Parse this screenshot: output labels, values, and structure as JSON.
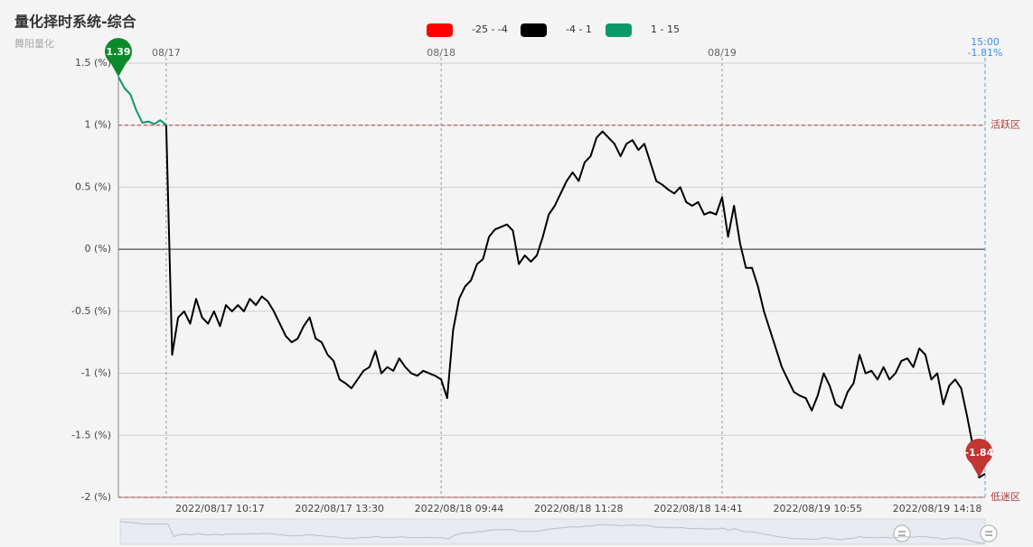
{
  "chart_data": {
    "type": "line",
    "title": "量化择时系统-综合",
    "subtitle": "舞阳量化",
    "pieces": [
      {
        "label": "-25 - -4",
        "min": -25,
        "max": -4,
        "color": "#ff0000"
      },
      {
        "label": "-4 - 1",
        "min": -4,
        "max": 1,
        "color": "#000000"
      },
      {
        "label": "1 - 15",
        "min": 1,
        "max": 15,
        "color": "#0a9a6a"
      }
    ],
    "values": [
      1.39,
      1.3,
      1.25,
      1.12,
      1.02,
      1.03,
      1.01,
      1.04,
      1.0,
      -0.85,
      -0.55,
      -0.5,
      -0.6,
      -0.4,
      -0.55,
      -0.6,
      -0.5,
      -0.62,
      -0.45,
      -0.5,
      -0.45,
      -0.5,
      -0.4,
      -0.45,
      -0.38,
      -0.42,
      -0.5,
      -0.6,
      -0.7,
      -0.75,
      -0.72,
      -0.62,
      -0.55,
      -0.72,
      -0.75,
      -0.85,
      -0.9,
      -1.05,
      -1.08,
      -1.12,
      -1.05,
      -0.98,
      -0.95,
      -0.82,
      -1.0,
      -0.95,
      -0.98,
      -0.88,
      -0.95,
      -1.0,
      -1.02,
      -0.98,
      -1.0,
      -1.02,
      -1.05,
      -1.2,
      -0.65,
      -0.4,
      -0.3,
      -0.25,
      -0.12,
      -0.08,
      0.1,
      0.16,
      0.18,
      0.2,
      0.15,
      -0.12,
      -0.05,
      -0.1,
      -0.05,
      0.1,
      0.28,
      0.35,
      0.45,
      0.55,
      0.62,
      0.55,
      0.7,
      0.75,
      0.9,
      0.95,
      0.9,
      0.85,
      0.75,
      0.85,
      0.88,
      0.8,
      0.85,
      0.7,
      0.55,
      0.52,
      0.48,
      0.45,
      0.5,
      0.38,
      0.35,
      0.38,
      0.28,
      0.3,
      0.28,
      0.42,
      0.1,
      0.35,
      0.05,
      -0.15,
      -0.15,
      -0.3,
      -0.5,
      -0.65,
      -0.8,
      -0.95,
      -1.05,
      -1.15,
      -1.18,
      -1.2,
      -1.3,
      -1.18,
      -1.0,
      -1.1,
      -1.25,
      -1.28,
      -1.15,
      -1.08,
      -0.85,
      -1.0,
      -0.98,
      -1.05,
      -0.95,
      -1.05,
      -1.0,
      -0.9,
      -0.88,
      -0.95,
      -0.8,
      -0.85,
      -1.05,
      -1.0,
      -1.25,
      -1.1,
      -1.05,
      -1.12,
      -1.35,
      -1.6,
      -1.84,
      -1.81
    ],
    "categories": [
      null,
      null,
      null,
      null,
      null,
      null,
      null,
      null,
      null,
      null,
      null,
      null,
      null,
      null,
      null,
      null,
      null,
      "2022/08/17 10:17",
      null,
      null,
      null,
      null,
      null,
      null,
      null,
      null,
      null,
      null,
      null,
      null,
      null,
      null,
      null,
      null,
      null,
      null,
      null,
      "2022/08/17 13:30",
      null,
      null,
      null,
      null,
      null,
      null,
      null,
      null,
      null,
      null,
      null,
      null,
      null,
      null,
      null,
      null,
      null,
      null,
      null,
      "2022/08/18 09:44",
      null,
      null,
      null,
      null,
      null,
      null,
      null,
      null,
      null,
      null,
      null,
      null,
      null,
      null,
      null,
      null,
      null,
      null,
      null,
      "2022/08/18 11:28",
      null,
      null,
      null,
      null,
      null,
      null,
      null,
      null,
      null,
      null,
      null,
      null,
      null,
      null,
      null,
      null,
      null,
      null,
      null,
      "2022/08/18 14:41",
      null,
      null,
      null,
      null,
      null,
      null,
      null,
      null,
      null,
      null,
      null,
      null,
      null,
      null,
      null,
      null,
      null,
      null,
      null,
      "2022/08/19 10:55",
      null,
      null,
      null,
      null,
      null,
      null,
      null,
      null,
      null,
      null,
      null,
      null,
      null,
      null,
      null,
      null,
      null,
      null,
      null,
      "2022/08/19 14:18",
      null,
      null,
      null,
      null,
      null,
      null,
      null,
      null
    ],
    "day_labels": [
      null,
      null,
      null,
      null,
      null,
      null,
      null,
      null,
      "08/17",
      null,
      null,
      null,
      null,
      null,
      null,
      null,
      null,
      null,
      null,
      null,
      null,
      null,
      null,
      null,
      null,
      null,
      null,
      null,
      null,
      null,
      null,
      null,
      null,
      null,
      null,
      null,
      null,
      null,
      null,
      null,
      null,
      null,
      null,
      null,
      null,
      null,
      null,
      null,
      null,
      null,
      null,
      null,
      null,
      null,
      "08/18",
      null,
      null,
      null,
      null,
      null,
      null,
      null,
      null,
      null,
      null,
      null,
      null,
      null,
      null,
      null,
      null,
      null,
      null,
      null,
      null,
      null,
      null,
      null,
      null,
      null,
      null,
      null,
      null,
      null,
      null,
      null,
      null,
      null,
      null,
      null,
      null,
      null,
      null,
      null,
      null,
      null,
      null,
      null,
      null,
      null,
      null,
      "08/19",
      null,
      null,
      null,
      null,
      null,
      null,
      null,
      null,
      null,
      null,
      null,
      null,
      null,
      null,
      null,
      null,
      null,
      null,
      null,
      null,
      null,
      null,
      null,
      null,
      null,
      null,
      null,
      null,
      null,
      null,
      null,
      null,
      null,
      null,
      null,
      null,
      null,
      null,
      null,
      null,
      null,
      null,
      null,
      null
    ],
    "ylim": [
      -2,
      1.5
    ],
    "yticks": [
      {
        "value": 1.5,
        "label": "1.5 (%)"
      },
      {
        "value": 1,
        "label": "1 (%)"
      },
      {
        "value": 0.5,
        "label": "0.5 (%)"
      },
      {
        "value": 0,
        "label": "0 (%)"
      },
      {
        "value": -0.5,
        "label": "-0.5 (%)"
      },
      {
        "value": -1,
        "label": "-1 (%)"
      },
      {
        "value": -1.5,
        "label": "-1.5 (%)"
      },
      {
        "value": -2,
        "label": "-2 (%)"
      }
    ],
    "mark_lines": [
      {
        "value": 1,
        "label": "活跃区"
      },
      {
        "value": -2,
        "label": "低迷区"
      }
    ],
    "last_time": "15:00",
    "last_label": "-1.81%",
    "grid": true
  }
}
